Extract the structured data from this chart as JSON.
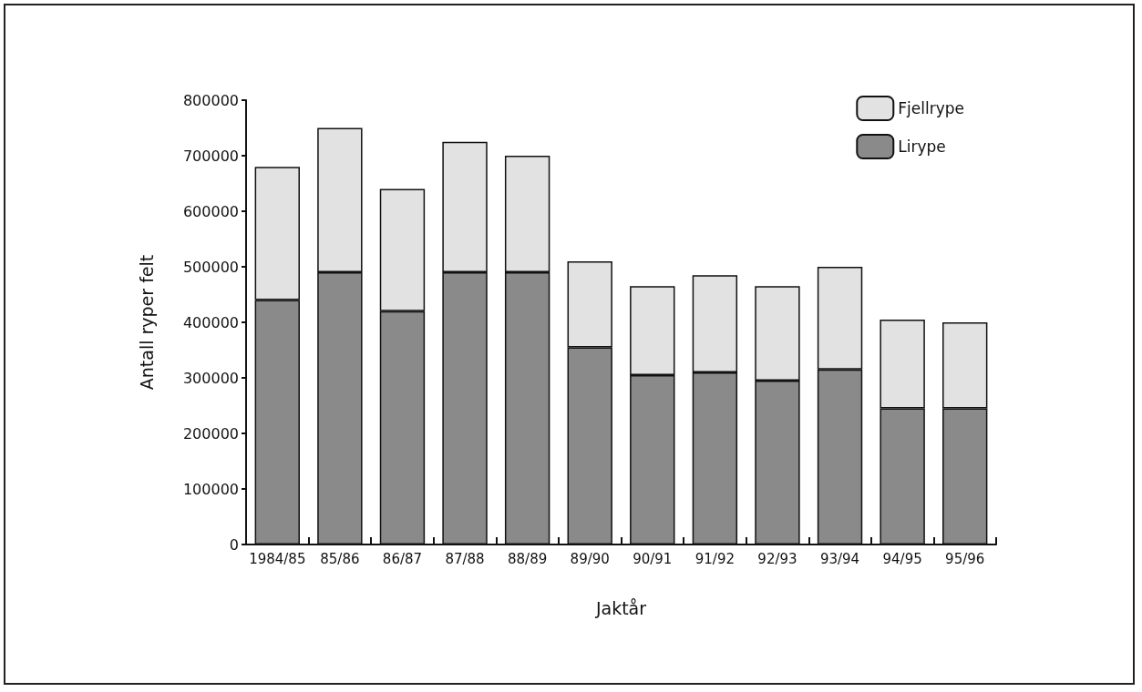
{
  "chart_data": {
    "type": "bar",
    "stacked": true,
    "xlabel": "Jaktår",
    "ylabel": "Antall ryper felt",
    "categories": [
      "1984/85",
      "85/86",
      "86/87",
      "87/88",
      "88/89",
      "89/90",
      "90/91",
      "91/92",
      "92/93",
      "93/94",
      "94/95",
      "95/96"
    ],
    "series": [
      {
        "name": "Lirype",
        "color": "#8a8a8a",
        "values": [
          440000,
          490000,
          420000,
          490000,
          490000,
          355000,
          305000,
          310000,
          295000,
          315000,
          245000,
          245000
        ]
      },
      {
        "name": "Fjellrype",
        "color": "#e2e2e2",
        "values": [
          240000,
          260000,
          220000,
          235000,
          210000,
          155000,
          160000,
          175000,
          170000,
          185000,
          160000,
          155000
        ]
      }
    ],
    "ylim": [
      0,
      800000
    ],
    "yticks": [
      0,
      100000,
      200000,
      300000,
      400000,
      500000,
      600000,
      700000,
      800000
    ],
    "grid": false,
    "legend": "top right"
  }
}
